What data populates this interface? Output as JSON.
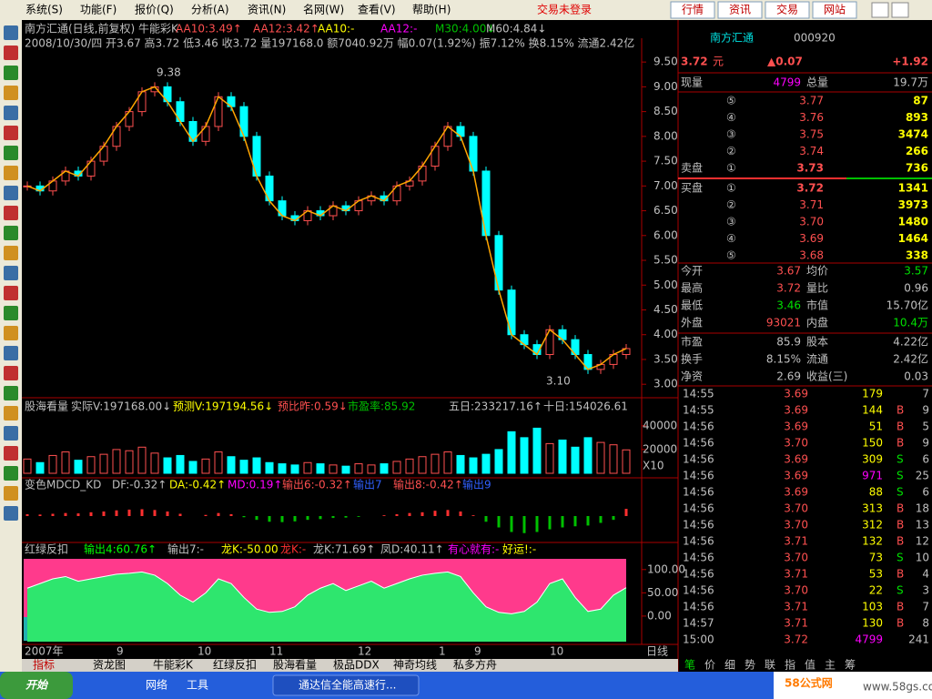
{
  "menu": [
    "系统(S)",
    "功能(F)",
    "报价(Q)",
    "分析(A)",
    "资讯(N)",
    "名网(W)",
    "查看(V)",
    "帮助(H)"
  ],
  "login_status": "交易未登录",
  "top_buttons": [
    "行情",
    "资讯",
    "交易",
    "网站"
  ],
  "chart_header": {
    "title": "南方汇通(日线,前复权) 牛能彩K",
    "mas": [
      "AA10:3.49↑",
      "AA12:3.42↑",
      "AA10:-",
      "AA12:-",
      "M30:4.00↓",
      "M60:4.84↓"
    ],
    "info": "2008/10/30/四 开3.67 高3.72 低3.46 收3.72 量197168.0 额7040.92万 幅0.07(1.92%) 振7.12% 换8.15% 流通2.42亿"
  },
  "annotations": [
    "9.38",
    "3.10"
  ],
  "price_chart": {
    "ylim": [
      2.82,
      9.98
    ],
    "yticks": [
      {
        "value": 9.5,
        "label": "9.50"
      },
      {
        "value": 9,
        "label": "9.00"
      },
      {
        "value": 8.5,
        "label": "8.50"
      },
      {
        "value": 8,
        "label": "8.00"
      },
      {
        "value": 7.5,
        "label": "7.50"
      },
      {
        "value": 7,
        "label": "7.00"
      },
      {
        "value": 6.5,
        "label": "6.50"
      },
      {
        "value": 6,
        "label": "6.00"
      },
      {
        "value": 5.5,
        "label": "5.50"
      },
      {
        "value": 5,
        "label": "5.00"
      },
      {
        "value": 4.5,
        "label": "4.50"
      },
      {
        "value": 4,
        "label": "4.00"
      },
      {
        "value": 3.5,
        "label": "3.50"
      },
      {
        "value": 3,
        "label": "3.00"
      }
    ],
    "close": [
      7.0,
      6.9,
      7.1,
      7.3,
      7.2,
      7.5,
      7.8,
      8.2,
      8.5,
      8.9,
      9.0,
      8.7,
      8.3,
      7.9,
      8.2,
      8.8,
      8.6,
      8.0,
      7.2,
      6.7,
      6.4,
      6.3,
      6.5,
      6.4,
      6.6,
      6.5,
      6.7,
      6.8,
      6.7,
      7.0,
      7.1,
      7.4,
      7.8,
      8.2,
      8.0,
      7.3,
      6.0,
      4.9,
      4.0,
      3.8,
      3.6,
      4.1,
      3.9,
      3.6,
      3.3,
      3.4,
      3.6,
      3.72
    ]
  },
  "volume_header": {
    "items": [
      "股海看量",
      "实际V:197168.00↓",
      "预测V:197194.56↓",
      "预比昨:0.59↓",
      "市盈率:85.92"
    ],
    "five_day": "五日:233217.16↑",
    "ten_day": "十日:154026.61"
  },
  "volume_panel": {
    "ylim": [
      0,
      46000
    ],
    "yticks": [
      20000,
      40000
    ],
    "scale_label": "X10",
    "values": [
      12000,
      9000,
      15000,
      18000,
      11000,
      14000,
      16000,
      20000,
      19000,
      22000,
      17000,
      13000,
      15000,
      10000,
      12000,
      18000,
      14000,
      11000,
      13000,
      9000,
      8000,
      7000,
      9000,
      8000,
      7000,
      6000,
      8000,
      7000,
      8000,
      10000,
      12000,
      14000,
      16000,
      18000,
      15000,
      13000,
      16000,
      20000,
      35000,
      30000,
      38000,
      25000,
      28000,
      22000,
      30000,
      26000,
      24000,
      19717
    ]
  },
  "macd_header": [
    "变色MDCD_KD",
    "DF:-0.32↑",
    "DA:-0.42↑",
    "MD:0.19↑",
    "输出6:-0.32↑",
    "输出7",
    "输出8:-0.42↑",
    "输出9"
  ],
  "macd_panel": {
    "ylim": [
      -0.6,
      0.6
    ],
    "values": [
      0.05,
      0.04,
      0.06,
      0.08,
      0.07,
      0.1,
      0.12,
      0.15,
      0.17,
      0.18,
      0.16,
      0.12,
      0.06,
      0.0,
      0.03,
      0.08,
      0.05,
      -0.03,
      -0.1,
      -0.15,
      -0.16,
      -0.14,
      -0.1,
      -0.08,
      -0.05,
      -0.04,
      -0.02,
      0.0,
      0.02,
      0.05,
      0.08,
      0.1,
      0.14,
      0.16,
      0.12,
      0.02,
      -0.15,
      -0.3,
      -0.42,
      -0.45,
      -0.42,
      -0.35,
      -0.3,
      -0.27,
      -0.25,
      -0.18,
      -0.1,
      0.19
    ]
  },
  "kd_header": [
    "红绿反扣",
    "输出4:60.76↑",
    "输出7:-",
    "龙K:-50.00",
    "龙K:-",
    "龙K:71.69↑",
    "凤D:40.11↑",
    "有心就有:-",
    "好运!:-"
  ],
  "kd_panel": {
    "ylim": [
      -55,
      127
    ],
    "yticks": [
      {
        "value": 100,
        "label": "100.00"
      },
      {
        "value": 50,
        "label": "50.00"
      },
      {
        "value": 0,
        "label": "0.00"
      }
    ],
    "values": [
      60,
      70,
      80,
      85,
      75,
      80,
      85,
      90,
      92,
      95,
      88,
      70,
      45,
      30,
      50,
      80,
      70,
      40,
      15,
      8,
      10,
      20,
      45,
      60,
      70,
      55,
      65,
      75,
      60,
      70,
      80,
      88,
      92,
      95,
      85,
      50,
      20,
      8,
      5,
      10,
      30,
      70,
      80,
      40,
      10,
      15,
      45,
      61
    ]
  },
  "x_axis": [
    "2007年",
    "9",
    "10",
    "11",
    "12",
    "1",
    "9",
    "10",
    "日线"
  ],
  "bottom_tabs": [
    "指标",
    "资龙图",
    "牛能彩K",
    "红绿反扣",
    "股海看量",
    "极品DDX",
    "神奇均线",
    "私多方舟"
  ],
  "quote": {
    "name": "南方汇通",
    "code": "000920",
    "price": "3.72",
    "unit": "元",
    "change": "▲0.07",
    "percent": "+1.92",
    "volume_row": [
      "现量",
      "4799",
      "总量",
      "19.7万"
    ],
    "sell_label": "卖盘",
    "buy_label": "买盘",
    "sell": [
      [
        "⑤",
        "3.77",
        "87"
      ],
      [
        "④",
        "3.76",
        "893"
      ],
      [
        "③",
        "3.75",
        "3474"
      ],
      [
        "②",
        "3.74",
        "266"
      ],
      [
        "①",
        "3.73",
        "736"
      ]
    ],
    "buy": [
      [
        "①",
        "3.72",
        "1341"
      ],
      [
        "②",
        "3.71",
        "3973"
      ],
      [
        "③",
        "3.70",
        "1480"
      ],
      [
        "④",
        "3.69",
        "1464"
      ],
      [
        "⑤",
        "3.68",
        "338"
      ]
    ],
    "stats": [
      [
        "今开",
        "3.67",
        "均价",
        "3.57"
      ],
      [
        "最高",
        "3.72",
        "量比",
        "0.96"
      ],
      [
        "最低",
        "3.46",
        "市值",
        "15.70亿"
      ],
      [
        "外盘",
        "93021",
        "内盘",
        "10.4万"
      ],
      [
        "市盈",
        "85.9",
        "股本",
        "4.22亿"
      ],
      [
        "换手",
        "8.15%",
        "流通",
        "2.42亿"
      ],
      [
        "净资",
        "2.69",
        "收益(三)",
        "0.03"
      ]
    ],
    "ticks": [
      {
        "time": "14:55",
        "price": "3.69",
        "vol": "179",
        "count": "7"
      },
      {
        "time": "14:55",
        "price": "3.69",
        "vol": "144",
        "side": "B",
        "count": "9"
      },
      {
        "time": "14:56",
        "price": "3.69",
        "vol": "51",
        "side": "B",
        "count": "5"
      },
      {
        "time": "14:56",
        "price": "3.70",
        "vol": "150",
        "side": "B",
        "count": "9"
      },
      {
        "time": "14:56",
        "price": "3.69",
        "vol": "309",
        "side": "S",
        "count": "6"
      },
      {
        "time": "14:56",
        "price": "3.69",
        "vol": "971",
        "side": "S",
        "count": "25"
      },
      {
        "time": "14:56",
        "price": "3.69",
        "vol": "88",
        "side": "S",
        "count": "6"
      },
      {
        "time": "14:56",
        "price": "3.70",
        "vol": "313",
        "side": "B",
        "count": "18"
      },
      {
        "time": "14:56",
        "price": "3.70",
        "vol": "312",
        "side": "B",
        "count": "13"
      },
      {
        "time": "14:56",
        "price": "3.71",
        "vol": "132",
        "side": "B",
        "count": "12"
      },
      {
        "time": "14:56",
        "price": "3.70",
        "vol": "73",
        "side": "S",
        "count": "10"
      },
      {
        "time": "14:56",
        "price": "3.71",
        "vol": "53",
        "side": "B",
        "count": "4"
      },
      {
        "time": "14:56",
        "price": "3.70",
        "vol": "22",
        "side": "S",
        "count": "3"
      },
      {
        "time": "14:56",
        "price": "3.71",
        "vol": "103",
        "side": "B",
        "count": "7"
      },
      {
        "time": "14:57",
        "price": "3.71",
        "vol": "130",
        "side": "B",
        "count": "8"
      },
      {
        "time": "15:00",
        "price": "3.72",
        "vol": "4799",
        "count": "241"
      }
    ],
    "tabs": [
      "笔",
      "价",
      "细",
      "势",
      "联",
      "指",
      "值",
      "主",
      "筹"
    ]
  },
  "taskbar": {
    "start": "开始",
    "items": [
      "网络",
      "工具"
    ],
    "window": "通达信全能高速行...",
    "brand": "58公式网",
    "site": "www.58gs.com"
  }
}
